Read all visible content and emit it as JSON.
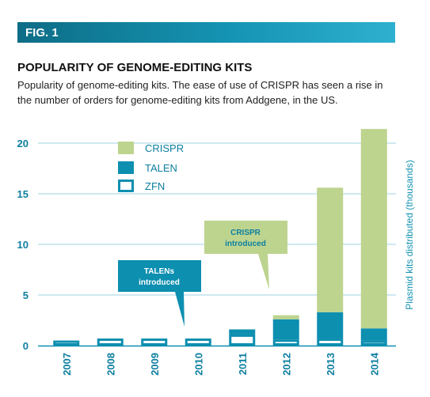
{
  "figure_label": "FIG. 1",
  "chart_data": {
    "type": "bar",
    "stacked": true,
    "title": "POPULARITY OF GENOME-EDITING KITS",
    "subtitle": "Popularity of genome-editing kits. The ease of use of CRISPR has seen a rise in the number of orders for genome-editing kits from Addgene, in the US.",
    "ylabel": "Plasmid kits distributed (thousands)",
    "ylim": [
      0,
      22
    ],
    "yticks": [
      "0",
      "5",
      "10",
      "15",
      "20"
    ],
    "categories": [
      "2007",
      "2008",
      "2009",
      "2010",
      "2011",
      "2012",
      "2013",
      "2014"
    ],
    "series": [
      {
        "name": "ZFN",
        "color": "#ffffff",
        "stroke": "#0d8fb0",
        "values": [
          0.5,
          0.7,
          0.7,
          0.7,
          1.1,
          0.6,
          0.7,
          0.5
        ]
      },
      {
        "name": "TALEN",
        "color": "#0d8fb0",
        "values": [
          0,
          0,
          0,
          0,
          0.5,
          2.0,
          2.6,
          1.2
        ]
      },
      {
        "name": "CRISPR",
        "color": "#bdd48f",
        "values": [
          0,
          0,
          0,
          0,
          0,
          0.4,
          12.3,
          19.7
        ]
      }
    ],
    "legend": {
      "position": "top-left"
    },
    "annotations": [
      {
        "text_lines": [
          "TALENs",
          "introduced"
        ],
        "color": "#0d8fb0",
        "text_color": "#ffffff",
        "year": "2010"
      },
      {
        "text_lines": [
          "CRISPR",
          "introduced"
        ],
        "color": "#bdd48f",
        "text_color": "#0d7fa0",
        "year": "2012"
      }
    ],
    "grid": true
  }
}
